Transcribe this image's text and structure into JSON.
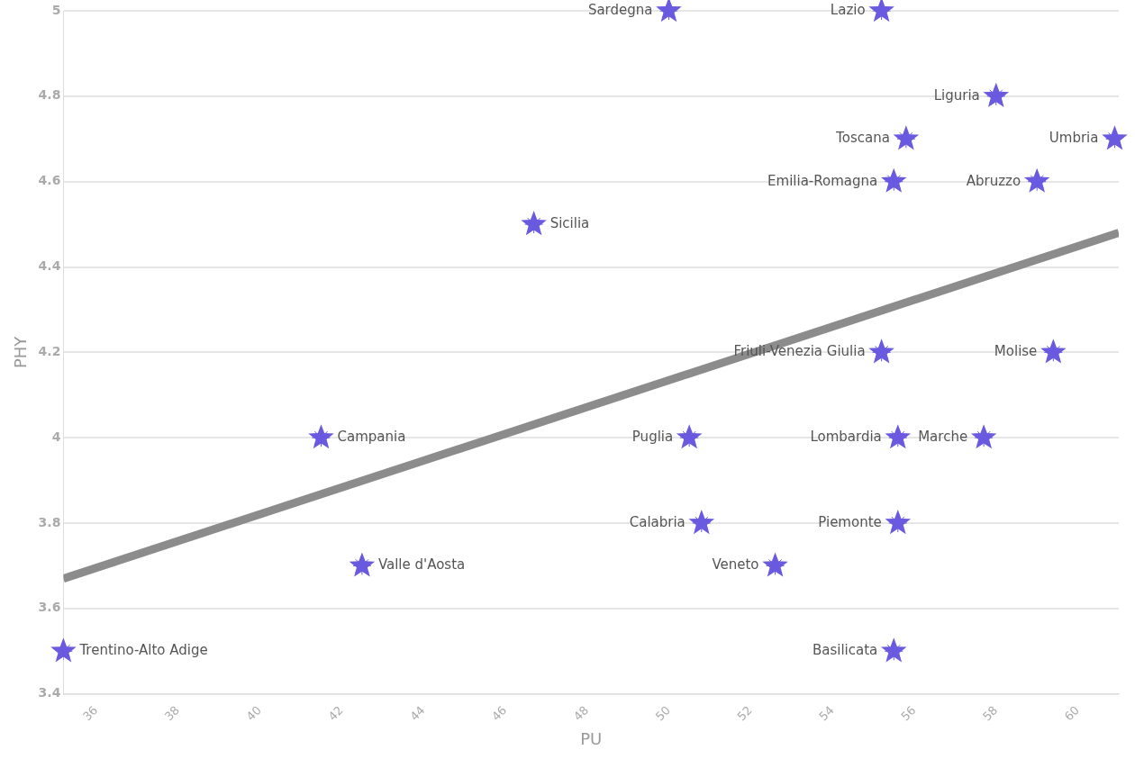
{
  "chart_data": {
    "type": "scatter",
    "xlabel": "PU",
    "ylabel": "PHY",
    "xlim": [
      35.2,
      61
    ],
    "xticks": [
      36,
      38,
      40,
      42,
      44,
      46,
      48,
      50,
      52,
      54,
      56,
      58,
      60
    ],
    "ylim": [
      3.4,
      5
    ],
    "yticks": [
      3.4,
      3.6,
      3.8,
      4,
      4.2,
      4.4,
      4.6,
      4.8,
      5
    ],
    "grid": "y",
    "legend": false,
    "series": [
      {
        "type": "scatter",
        "marker": "star",
        "color": "#6a5ae0",
        "x": [
          50.0,
          55.2,
          58.0,
          55.8,
          60.9,
          55.5,
          59.0,
          46.7,
          55.2,
          59.4,
          41.5,
          50.5,
          55.6,
          57.7,
          50.8,
          55.6,
          42.5,
          52.6,
          35.2,
          55.5
        ],
        "values": [
          5,
          5,
          4.8,
          4.7,
          4.7,
          4.6,
          4.6,
          4.5,
          4.2,
          4.2,
          4,
          4,
          4,
          4,
          3.8,
          3.8,
          3.7,
          3.7,
          3.5,
          3.5
        ]
      },
      {
        "type": "line",
        "marker": "none",
        "color": "#8c8c8c",
        "x": [
          35.2,
          61
        ],
        "values": [
          3.67,
          4.48
        ]
      }
    ],
    "annotations": [
      {
        "text": "Sardegna",
        "x": 50.0,
        "y": 5
      },
      {
        "text": "Lazio",
        "x": 55.2,
        "y": 5
      },
      {
        "text": "Liguria",
        "x": 58.0,
        "y": 4.8
      },
      {
        "text": "Toscana",
        "x": 55.8,
        "y": 4.7
      },
      {
        "text": "Umbria",
        "x": 60.9,
        "y": 4.7
      },
      {
        "text": "Emilia-Romagna",
        "x": 55.5,
        "y": 4.6
      },
      {
        "text": "Abruzzo",
        "x": 59.0,
        "y": 4.6
      },
      {
        "text": "Sicilia",
        "x": 46.7,
        "y": 4.5
      },
      {
        "text": "Friuli-Venezia Giulia",
        "x": 55.2,
        "y": 4.2
      },
      {
        "text": "Molise",
        "x": 59.4,
        "y": 4.2
      },
      {
        "text": "Campania",
        "x": 41.5,
        "y": 4
      },
      {
        "text": "Puglia",
        "x": 50.5,
        "y": 4
      },
      {
        "text": "Lombardia",
        "x": 55.6,
        "y": 4
      },
      {
        "text": "Marche",
        "x": 57.7,
        "y": 4
      },
      {
        "text": "Calabria",
        "x": 50.8,
        "y": 3.8
      },
      {
        "text": "Piemonte",
        "x": 55.6,
        "y": 3.8
      },
      {
        "text": "Valle d'Aosta",
        "x": 42.5,
        "y": 3.7
      },
      {
        "text": "Veneto",
        "x": 52.6,
        "y": 3.7
      },
      {
        "text": "Trentino-Alto Adige",
        "x": 35.2,
        "y": 3.5
      },
      {
        "text": "Basilicata",
        "x": 55.5,
        "y": 3.5
      }
    ]
  }
}
